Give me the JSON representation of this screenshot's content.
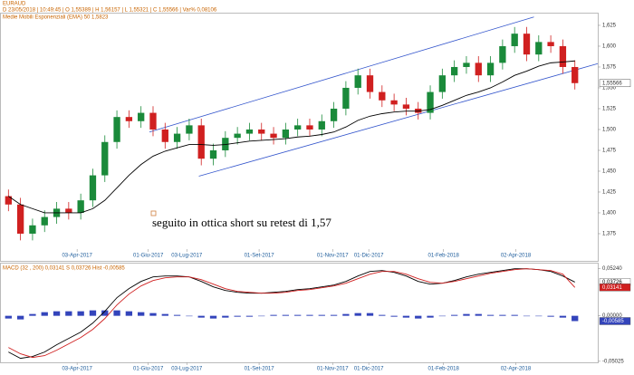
{
  "chart_data": [
    {
      "type": "candlestick",
      "title": "EURAUD",
      "subtitle": "D 23/05/2018 | 10:49:45 | O 1,55389 | H 1,56157 | L 1,55321 | C 1,55566 | Var% 0,08106",
      "annotation": "seguito in ottica short su retest di 1,57",
      "last_label": "1,55566",
      "x": [
        35,
        45,
        55,
        65,
        75,
        85,
        95,
        105,
        115,
        125,
        135,
        145,
        155,
        165,
        175,
        185,
        195,
        205,
        215,
        225,
        235,
        245,
        255,
        265,
        275,
        285,
        295,
        305,
        315,
        325,
        335,
        345,
        355,
        365,
        375,
        385,
        395,
        405,
        415,
        425,
        435,
        445,
        455,
        465,
        475,
        485,
        495,
        505
      ],
      "open": [
        1.42,
        1.41,
        1.375,
        1.385,
        1.395,
        1.405,
        1.4,
        1.415,
        1.445,
        1.485,
        1.515,
        1.51,
        1.52,
        1.5,
        1.485,
        1.495,
        1.505,
        1.465,
        1.475,
        1.49,
        1.495,
        1.5,
        1.495,
        1.49,
        1.5,
        1.505,
        1.5,
        1.51,
        1.525,
        1.55,
        1.565,
        1.545,
        1.535,
        1.53,
        1.525,
        1.52,
        1.545,
        1.565,
        1.575,
        1.58,
        1.565,
        1.58,
        1.6,
        1.615,
        1.59,
        1.605,
        1.6,
        1.575
      ],
      "high": [
        1.428,
        1.418,
        1.393,
        1.403,
        1.413,
        1.413,
        1.423,
        1.453,
        1.493,
        1.523,
        1.523,
        1.528,
        1.528,
        1.508,
        1.503,
        1.513,
        1.513,
        1.483,
        1.498,
        1.503,
        1.508,
        1.508,
        1.503,
        1.508,
        1.513,
        1.513,
        1.518,
        1.533,
        1.558,
        1.573,
        1.573,
        1.553,
        1.543,
        1.538,
        1.533,
        1.553,
        1.573,
        1.583,
        1.588,
        1.588,
        1.588,
        1.608,
        1.623,
        1.623,
        1.613,
        1.613,
        1.608,
        1.583
      ],
      "low": [
        1.402,
        1.367,
        1.367,
        1.377,
        1.387,
        1.392,
        1.392,
        1.407,
        1.437,
        1.477,
        1.502,
        1.502,
        1.492,
        1.477,
        1.477,
        1.487,
        1.457,
        1.457,
        1.467,
        1.482,
        1.487,
        1.487,
        1.482,
        1.482,
        1.492,
        1.492,
        1.492,
        1.502,
        1.517,
        1.542,
        1.537,
        1.527,
        1.522,
        1.517,
        1.512,
        1.512,
        1.537,
        1.557,
        1.567,
        1.557,
        1.557,
        1.572,
        1.592,
        1.582,
        1.582,
        1.592,
        1.567,
        1.548
      ],
      "close": [
        1.41,
        1.375,
        1.385,
        1.395,
        1.405,
        1.4,
        1.415,
        1.445,
        1.485,
        1.515,
        1.51,
        1.52,
        1.5,
        1.485,
        1.495,
        1.505,
        1.465,
        1.475,
        1.49,
        1.495,
        1.5,
        1.495,
        1.49,
        1.5,
        1.505,
        1.5,
        1.51,
        1.525,
        1.55,
        1.565,
        1.545,
        1.535,
        1.53,
        1.525,
        1.52,
        1.545,
        1.565,
        1.575,
        1.58,
        1.565,
        1.58,
        1.6,
        1.615,
        1.59,
        1.605,
        1.6,
        1.575,
        1.55566
      ],
      "up_color": "#1a8a3a",
      "down_color": "#d02020",
      "series": [
        {
          "name": "Medie Mobili Esponenziali (EMA)   50   1,5823",
          "color": "#000000",
          "values": [
            1.42,
            1.41,
            1.405,
            1.4,
            1.4,
            1.4,
            1.4,
            1.405,
            1.415,
            1.43,
            1.445,
            1.458,
            1.468,
            1.474,
            1.478,
            1.482,
            1.482,
            1.481,
            1.482,
            1.484,
            1.486,
            1.487,
            1.488,
            1.489,
            1.491,
            1.492,
            1.494,
            1.497,
            1.503,
            1.511,
            1.516,
            1.519,
            1.521,
            1.522,
            1.522,
            1.524,
            1.529,
            1.535,
            1.541,
            1.545,
            1.55,
            1.557,
            1.565,
            1.57,
            1.576,
            1.58,
            1.581,
            1.5823
          ]
        }
      ],
      "trendlines": [
        {
          "x": [
            152,
            471
          ],
          "y": [
            1.497,
            1.635
          ],
          "color": "#3355cc"
        },
        {
          "x": [
            193,
            524
          ],
          "y": [
            1.444,
            1.579
          ],
          "color": "#3355cc"
        }
      ],
      "xlim": [
        28,
        524
      ],
      "ylim": [
        1.3565,
        1.6391
      ],
      "xticks": [
        {
          "value": 92,
          "label": "03-Apr-2017"
        },
        {
          "value": 151,
          "label": "01-Giu-2017"
        },
        {
          "value": 183,
          "label": "03-Lug-2017"
        },
        {
          "value": 243,
          "label": "01-Set-2017"
        },
        {
          "value": 304,
          "label": "01-Nov-2017"
        },
        {
          "value": 334,
          "label": "01-Dic-2017"
        },
        {
          "value": 396,
          "label": "01-Feb-2018"
        },
        {
          "value": 456,
          "label": "02-Apr-2018"
        }
      ],
      "yticks": [
        {
          "value": 1.375,
          "label": "1,375"
        },
        {
          "value": 1.4,
          "label": "1,400"
        },
        {
          "value": 1.425,
          "label": "1,425"
        },
        {
          "value": 1.45,
          "label": "1,450"
        },
        {
          "value": 1.475,
          "label": "1,475"
        },
        {
          "value": 1.5,
          "label": "1,500"
        },
        {
          "value": 1.525,
          "label": "1,525"
        },
        {
          "value": 1.55,
          "label": "1,550"
        },
        {
          "value": 1.575,
          "label": "1,575"
        },
        {
          "value": 1.6,
          "label": "1,600"
        },
        {
          "value": 1.625,
          "label": "1,625"
        }
      ]
    },
    {
      "type": "line",
      "title": "MACD    (32 , 200)    0,03141    S    0,03726    Hist    -0,00585",
      "x": [
        35,
        45,
        55,
        65,
        75,
        85,
        95,
        105,
        115,
        125,
        135,
        145,
        155,
        165,
        175,
        185,
        195,
        205,
        215,
        225,
        235,
        245,
        255,
        265,
        275,
        285,
        295,
        305,
        315,
        325,
        335,
        345,
        355,
        365,
        375,
        385,
        395,
        405,
        415,
        425,
        435,
        445,
        455,
        465,
        475,
        485,
        495,
        505
      ],
      "series": [
        {
          "color": "#000000",
          "values": [
            -0.04,
            -0.047,
            -0.045,
            -0.04,
            -0.032,
            -0.025,
            -0.018,
            -0.008,
            0.005,
            0.02,
            0.03,
            0.038,
            0.043,
            0.044,
            0.044,
            0.043,
            0.038,
            0.032,
            0.028,
            0.026,
            0.025,
            0.025,
            0.026,
            0.027,
            0.029,
            0.03,
            0.032,
            0.034,
            0.038,
            0.044,
            0.049,
            0.05,
            0.048,
            0.044,
            0.038,
            0.035,
            0.036,
            0.039,
            0.043,
            0.046,
            0.048,
            0.05,
            0.052,
            0.052,
            0.051,
            0.049,
            0.044,
            0.03726
          ],
          "value_labels": [
            null,
            null,
            null,
            null,
            null,
            null,
            null,
            null,
            null,
            null,
            null,
            null,
            null,
            null,
            null,
            null,
            null,
            null,
            null,
            null,
            null,
            null,
            null,
            null,
            null,
            null,
            null,
            null,
            null,
            null,
            null,
            null,
            null,
            null,
            null,
            null,
            null,
            null,
            null,
            null,
            null,
            null,
            null,
            null,
            null,
            null,
            null,
            "0,03726"
          ]
        },
        {
          "color": "#d02020",
          "values": [
            -0.035,
            -0.042,
            -0.046,
            -0.044,
            -0.038,
            -0.031,
            -0.024,
            -0.015,
            -0.003,
            0.012,
            0.024,
            0.033,
            0.039,
            0.042,
            0.043,
            0.043,
            0.04,
            0.035,
            0.03,
            0.027,
            0.026,
            0.025,
            0.025,
            0.026,
            0.028,
            0.029,
            0.031,
            0.033,
            0.036,
            0.041,
            0.046,
            0.049,
            0.049,
            0.046,
            0.041,
            0.037,
            0.036,
            0.038,
            0.041,
            0.044,
            0.047,
            0.049,
            0.051,
            0.052,
            0.051,
            0.05,
            0.046,
            0.03141
          ],
          "value_labels": [
            null,
            null,
            null,
            null,
            null,
            null,
            null,
            null,
            null,
            null,
            null,
            null,
            null,
            null,
            null,
            null,
            null,
            null,
            null,
            null,
            null,
            null,
            null,
            null,
            null,
            null,
            null,
            null,
            null,
            null,
            null,
            null,
            null,
            null,
            null,
            null,
            null,
            null,
            null,
            null,
            null,
            null,
            null,
            null,
            null,
            null,
            null,
            "0,03141"
          ]
        }
      ],
      "histogram": {
        "color": "#3344bb",
        "values": [
          -0.003,
          -0.004,
          0.002,
          0.004,
          0.005,
          0.005,
          0.005,
          0.006,
          0.006,
          0.006,
          0.005,
          0.004,
          0.003,
          0.002,
          0.001,
          0.0,
          -0.002,
          -0.003,
          -0.002,
          -0.001,
          -0.001,
          0.0,
          0.001,
          0.001,
          0.001,
          0.001,
          0.001,
          0.001,
          0.002,
          0.003,
          0.003,
          0.001,
          -0.001,
          -0.002,
          -0.003,
          -0.002,
          0.0,
          0.001,
          0.002,
          0.002,
          0.001,
          0.001,
          0.001,
          0.0,
          0.0,
          -0.001,
          -0.002,
          -0.00585
        ],
        "value_labels": [
          null,
          null,
          null,
          null,
          null,
          null,
          null,
          null,
          null,
          null,
          null,
          null,
          null,
          null,
          null,
          null,
          null,
          null,
          null,
          null,
          null,
          null,
          null,
          null,
          null,
          null,
          null,
          null,
          null,
          null,
          null,
          null,
          null,
          null,
          null,
          null,
          null,
          null,
          null,
          null,
          null,
          null,
          null,
          null,
          null,
          null,
          null,
          "-0,00585"
        ]
      },
      "xlim": [
        28,
        524
      ],
      "ylim": [
        -0.0514,
        0.0577
      ],
      "xticks": [
        {
          "value": 92,
          "label": "03-Apr-2017"
        },
        {
          "value": 151,
          "label": "01-Giu-2017"
        },
        {
          "value": 183,
          "label": "03-Lug-2017"
        },
        {
          "value": 243,
          "label": "01-Set-2017"
        },
        {
          "value": 304,
          "label": "01-Nov-2017"
        },
        {
          "value": 334,
          "label": "01-Dic-2017"
        },
        {
          "value": 396,
          "label": "01-Feb-2018"
        },
        {
          "value": 456,
          "label": "02-Apr-2018"
        }
      ],
      "yticks": [
        {
          "value": -0.05025,
          "label": "-0,05025"
        },
        {
          "value": 0,
          "label": "0,00000"
        },
        {
          "value": 0.0524,
          "label": "0,05240"
        }
      ]
    }
  ]
}
